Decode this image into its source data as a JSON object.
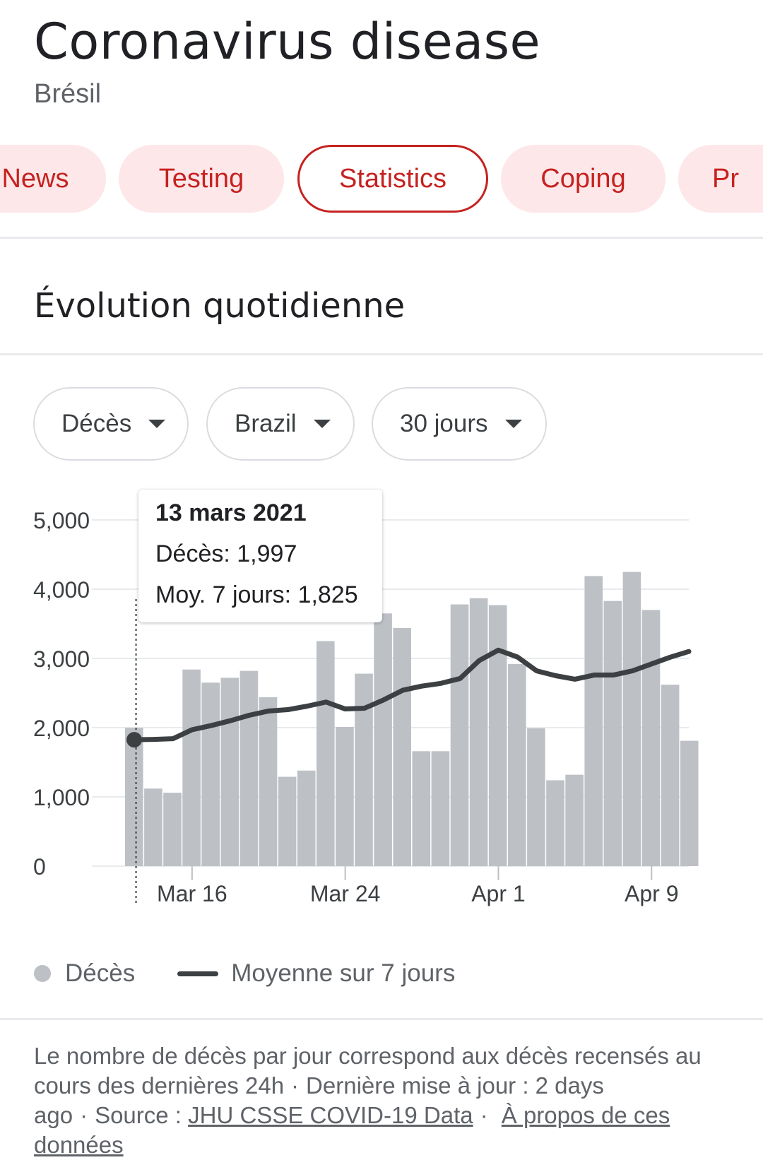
{
  "header": {
    "title": "Coronavirus disease",
    "region": "Brésil"
  },
  "tabs": [
    {
      "label": "News",
      "active": false
    },
    {
      "label": "Testing",
      "active": false
    },
    {
      "label": "Statistics",
      "active": true
    },
    {
      "label": "Coping",
      "active": false
    },
    {
      "label": "Pr",
      "active": false
    }
  ],
  "section": {
    "title": "Évolution quotidienne"
  },
  "filters": {
    "metric": "Décès",
    "country": "Brazil",
    "range": "30 jours"
  },
  "tooltip": {
    "date": "13 mars 2021",
    "deaths_line": "Décès: 1,997",
    "avg_line": "Moy. 7 jours: 1,825"
  },
  "legend": {
    "bars": "Décès",
    "line": "Moyenne sur 7 jours"
  },
  "footer": {
    "text_1": "Le nombre de décès par jour correspond aux décès recensés au cours des dernières 24h",
    "separator": "·",
    "text_2": "Dernière mise à jour : 2 days ago",
    "source_label": "Source :",
    "source_link": "JHU CSSE COVID-19 Data",
    "about_link": "À propos de ces données"
  },
  "colors": {
    "accent": "#c5221f",
    "chip_bg": "#fde7e9",
    "bar": "#bdc1c6",
    "line": "#3c4043"
  },
  "chart_data": {
    "type": "bar",
    "ylim": [
      0,
      5000
    ],
    "yticks": [
      0,
      1000,
      2000,
      3000,
      4000,
      5000
    ],
    "ytick_labels": [
      "0",
      "1,000",
      "2,000",
      "3,000",
      "4,000",
      "5,000"
    ],
    "xtick_labels": [
      {
        "label": "Mar 16",
        "index": 3
      },
      {
        "label": "Mar 24",
        "index": 11
      },
      {
        "label": "Apr 1",
        "index": 19
      },
      {
        "label": "Apr 9",
        "index": 27
      }
    ],
    "grid": true,
    "highlight_index": 0,
    "series": [
      {
        "name": "Décès",
        "type": "bar",
        "values": [
          1997,
          1120,
          1060,
          2840,
          2650,
          2720,
          2820,
          2440,
          1290,
          1380,
          3250,
          2010,
          2780,
          3650,
          3440,
          1660,
          1660,
          3780,
          3870,
          3770,
          2920,
          1990,
          1240,
          1320,
          4190,
          3830,
          4250,
          3700,
          2620,
          1810
        ]
      },
      {
        "name": "Moyenne sur 7 jours",
        "type": "line",
        "values": [
          1825,
          1830,
          1840,
          1970,
          2030,
          2100,
          2180,
          2240,
          2260,
          2310,
          2370,
          2270,
          2280,
          2400,
          2540,
          2600,
          2640,
          2710,
          2970,
          3120,
          3020,
          2820,
          2750,
          2700,
          2760,
          2760,
          2820,
          2920,
          3020,
          3100
        ]
      }
    ]
  }
}
